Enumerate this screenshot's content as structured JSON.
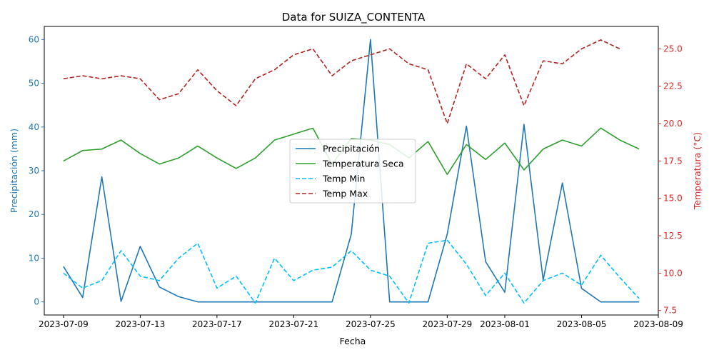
{
  "chart_data": {
    "type": "line",
    "title": "Data for SUIZA_CONTENTA",
    "xlabel": "Fecha",
    "ylabel_left": "Precipitación (mm)",
    "ylabel_right": "Temperatura (°C)",
    "x_dates": [
      "2023-07-09",
      "2023-07-10",
      "2023-07-11",
      "2023-07-12",
      "2023-07-13",
      "2023-07-14",
      "2023-07-15",
      "2023-07-16",
      "2023-07-17",
      "2023-07-18",
      "2023-07-19",
      "2023-07-20",
      "2023-07-21",
      "2023-07-22",
      "2023-07-23",
      "2023-07-24",
      "2023-07-25",
      "2023-07-26",
      "2023-07-27",
      "2023-07-28",
      "2023-07-29",
      "2023-07-30",
      "2023-07-31",
      "2023-08-01",
      "2023-08-02",
      "2023-08-03",
      "2023-08-04",
      "2023-08-05",
      "2023-08-06",
      "2023-08-07",
      "2023-08-08"
    ],
    "xlim": [
      "2023-07-08",
      "2023-08-09"
    ],
    "x_ticks": [
      "2023-07-09",
      "2023-07-13",
      "2023-07-17",
      "2023-07-21",
      "2023-07-25",
      "2023-07-29",
      "2023-08-01",
      "2023-08-05",
      "2023-08-09"
    ],
    "ylim_left": [
      -3,
      63
    ],
    "yticks_left": [
      0,
      10,
      20,
      30,
      40,
      50,
      60
    ],
    "ylim_right": [
      7.2,
      26.5
    ],
    "yticks_right": [
      7.5,
      10.0,
      12.5,
      15.0,
      17.5,
      20.0,
      22.5,
      25.0
    ],
    "legend_position": "center",
    "grid": false,
    "colors": {
      "precip": "#1f77b4",
      "temp_seca": "#2ca02c",
      "temp_min": "#00bfff",
      "temp_max": "#b22222",
      "left_axis": "#1f77b4",
      "right_axis": "#d62728"
    },
    "series": [
      {
        "name": "Precipitación",
        "axis": "left",
        "style": "solid",
        "color": "#1f77b4",
        "values": [
          8.1,
          1.0,
          28.6,
          0.1,
          12.7,
          3.4,
          1.2,
          0.0,
          0.0,
          0.0,
          0.0,
          0.0,
          0.0,
          0.0,
          0.0,
          15.5,
          60.0,
          0.0,
          0.0,
          0.0,
          15.5,
          40.2,
          9.2,
          2.2,
          40.6,
          5.0,
          27.2,
          3.1,
          0.0,
          0.0,
          0.0
        ]
      },
      {
        "name": "Temperatura Seca",
        "axis": "right",
        "style": "solid",
        "color": "#2ca02c",
        "values": [
          17.5,
          18.2,
          18.3,
          18.9,
          18.0,
          17.3,
          17.7,
          18.5,
          17.7,
          17.0,
          17.7,
          18.9,
          19.3,
          19.7,
          17.3,
          19.0,
          18.9,
          18.6,
          17.7,
          18.8,
          16.6,
          18.6,
          17.6,
          18.7,
          16.9,
          18.3,
          18.9,
          18.5,
          19.7,
          18.9,
          18.3
        ]
      },
      {
        "name": "Temp Min",
        "axis": "right",
        "style": "dashed",
        "color": "#00bfff",
        "values": [
          10.0,
          9.0,
          9.5,
          11.5,
          9.8,
          9.5,
          11.0,
          12.0,
          9.0,
          9.8,
          8.0,
          11.0,
          9.5,
          10.2,
          10.4,
          11.5,
          10.2,
          9.8,
          8.0,
          12.0,
          12.2,
          10.6,
          8.5,
          10.0,
          8.0,
          9.5,
          10.0,
          9.2,
          11.2,
          9.7,
          8.3
        ]
      },
      {
        "name": "Temp Max",
        "axis": "right",
        "style": "dashed",
        "color": "#b22222",
        "values": [
          23.0,
          23.2,
          23.0,
          23.2,
          23.0,
          21.6,
          22.0,
          23.6,
          22.2,
          21.2,
          23.0,
          23.6,
          24.6,
          25.0,
          23.2,
          24.2,
          24.6,
          25.0,
          24.0,
          23.6,
          20.0,
          24.0,
          23.0,
          24.6,
          21.2,
          24.2,
          24.0,
          25.0,
          25.6,
          25.0,
          null
        ]
      }
    ]
  }
}
